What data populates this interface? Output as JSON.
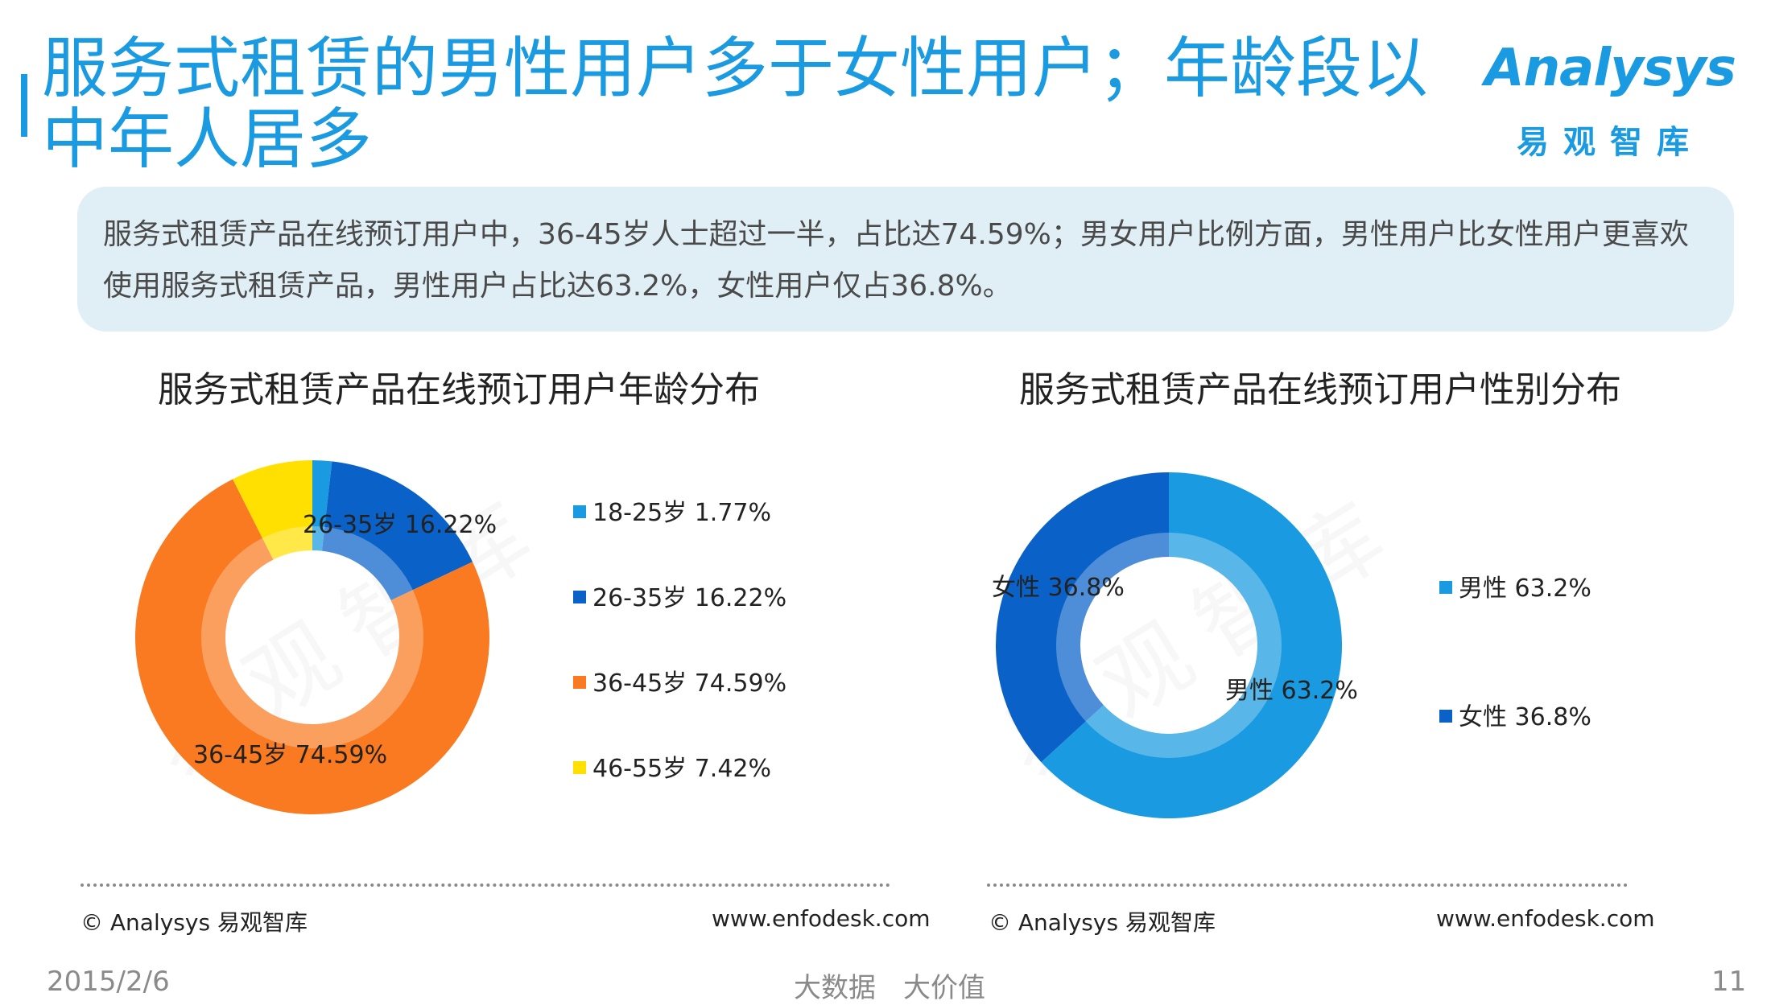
{
  "header": {
    "title": "服务式租赁的男性用户多于女性用户；年龄段以中年人居多",
    "logo_en": "Analysys",
    "logo_cn": "易观智库"
  },
  "summary": {
    "text": "服务式租赁产品在线预订用户中，36-45岁人士超过一半，占比达74.59%；男女用户比例方面，男性用户比女性用户更喜欢使用服务式租赁产品，男性用户占比达63.2%，女性用户仅占36.8%。"
  },
  "watermark": "易观智库",
  "chart_data": [
    {
      "type": "pie",
      "title": "服务式租赁产品在线预订用户年龄分布",
      "categories": [
        "18-25岁",
        "26-35岁",
        "36-45岁",
        "46-55岁"
      ],
      "values": [
        1.77,
        16.22,
        74.59,
        7.42
      ],
      "unit": "%",
      "legend_labels": [
        "18-25岁 1.77%",
        "26-35岁 16.22%",
        "36-45岁 74.59%",
        "46-55岁 7.42%"
      ],
      "data_labels": [
        "",
        "26-35岁 16.22%",
        "36-45岁 74.59%",
        ""
      ],
      "colors": [
        "#1a9ae0",
        "#0a62c8",
        "#f97a20",
        "#ffe000"
      ],
      "donut": true,
      "legend_position": "right"
    },
    {
      "type": "pie",
      "title": "服务式租赁产品在线预订用户性别分布",
      "categories": [
        "男性",
        "女性"
      ],
      "values": [
        63.2,
        36.8
      ],
      "unit": "%",
      "legend_labels": [
        "男性 63.2%",
        "女性 36.8%"
      ],
      "data_labels": [
        "男性 63.2%",
        "女性 36.8%"
      ],
      "colors": [
        "#1a9ae0",
        "#0a62c8"
      ],
      "donut": true,
      "legend_position": "right"
    }
  ],
  "footer": {
    "left_copyright": "© Analysys 易观智库",
    "left_site": "www.enfodesk.com",
    "right_copyright": "© Analysys 易观智库",
    "right_site": "www.enfodesk.com",
    "date": "2015/2/6",
    "slogan": "大数据　大价值",
    "page_number": "11"
  }
}
